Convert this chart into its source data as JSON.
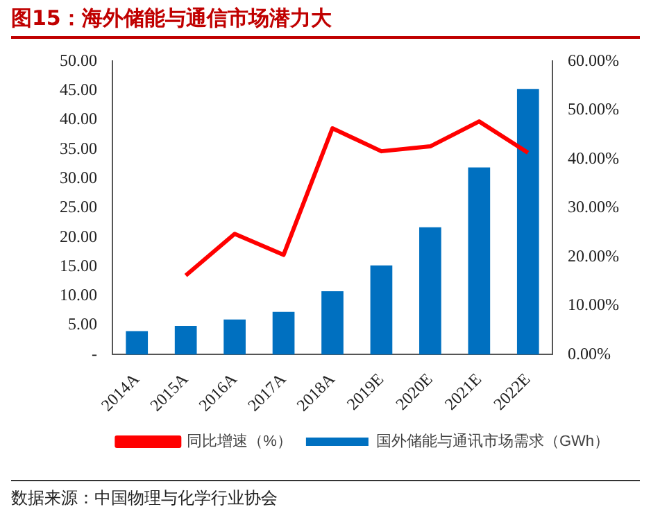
{
  "chart_data": {
    "type": "bar",
    "title": "图15：海外储能与通信市场潜力大",
    "categories": [
      "2014A",
      "2015A",
      "2016A",
      "2017A",
      "2018A",
      "2019E",
      "2020E",
      "2021E",
      "2022E"
    ],
    "series": [
      {
        "name": "国外储能与通讯市场需求（GWh）",
        "color": "#0070c0",
        "values": [
          4.0,
          4.9,
          6.0,
          7.3,
          10.8,
          15.2,
          21.7,
          31.9,
          45.3
        ]
      },
      {
        "name": "同比增速（%）",
        "type": "line",
        "axis": "y2",
        "color": "#ff0000",
        "values": [
          null,
          16.2,
          24.7,
          20.4,
          46.3,
          41.6,
          42.6,
          47.7,
          41.3
        ]
      }
    ],
    "ylim": [
      0,
      50
    ],
    "yticks": [
      {
        "value": 0,
        "label": "-"
      },
      {
        "value": 5,
        "label": "5.00"
      },
      {
        "value": 10,
        "label": "10.00"
      },
      {
        "value": 15,
        "label": "15.00"
      },
      {
        "value": 20,
        "label": "20.00"
      },
      {
        "value": 25,
        "label": "25.00"
      },
      {
        "value": 30,
        "label": "30.00"
      },
      {
        "value": 35,
        "label": "35.00"
      },
      {
        "value": 40,
        "label": "40.00"
      },
      {
        "value": 45,
        "label": "45.00"
      },
      {
        "value": 50,
        "label": "50.00"
      }
    ],
    "y2lim": [
      0,
      60
    ],
    "y2ticks": [
      {
        "value": 0,
        "label": "0.00%"
      },
      {
        "value": 10,
        "label": "10.00%"
      },
      {
        "value": 20,
        "label": "20.00%"
      },
      {
        "value": 30,
        "label": "30.00%"
      },
      {
        "value": 40,
        "label": "40.00%"
      },
      {
        "value": 50,
        "label": "50.00%"
      },
      {
        "value": 60,
        "label": "60.00%"
      }
    ],
    "grid": false,
    "legend": "bottom",
    "marker": "none",
    "annotations": [
      "数据来源：中国物理与化学行业协会"
    ]
  }
}
